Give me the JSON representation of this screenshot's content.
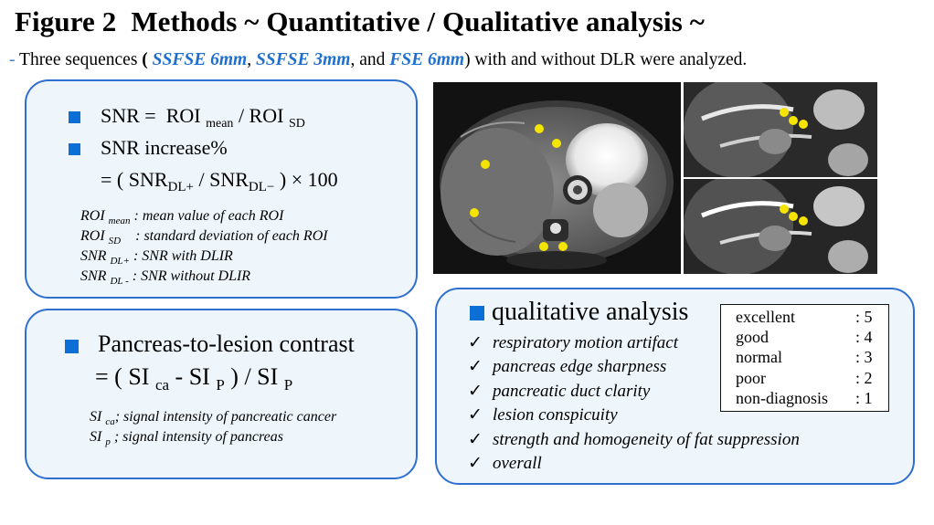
{
  "header": {
    "title_figure": "Figure 2",
    "title_text": "Methods ~ Quantitative / Qualitative analysis ~",
    "subtitle_dash": "-",
    "subtitle_prefix": "Three sequences",
    "open_paren": "(",
    "seq1": "SSFSE 6mm",
    "comma1": ",",
    "seq2": "SSFSE 3mm",
    "and_text": ", and",
    "seq3": "FSE 6mm",
    "subtitle_suffix": ") with and without DLR were analyzed."
  },
  "snr_box": {
    "formula1": {
      "lhs": "SNR =",
      "roi1": "ROI",
      "sub1": "mean",
      "slash": "/ ROI",
      "sub2": "SD"
    },
    "formula2_label": "SNR increase%",
    "formula3": {
      "prefix": "= ( SNR",
      "sub1": "DL+",
      "mid": "/ SNR",
      "sub2": "DL−",
      "suffix": ") × 100"
    },
    "defs": [
      {
        "term": "ROI",
        "sub": "mean",
        "desc": ": mean value of each ROI"
      },
      {
        "term": "ROI",
        "sub": "SD",
        "desc": ": standard deviation of each ROI"
      },
      {
        "term": "SNR",
        "sub": "DL+",
        "desc": ": SNR with DLIR"
      },
      {
        "term": "SNR",
        "sub": "DL -",
        "desc": ": SNR without DLIR"
      }
    ]
  },
  "contrast_box": {
    "label": "Pancreas-to-lesion contrast",
    "formula": {
      "prefix": "= ( SI",
      "sub1": "ca",
      "mid": "- SI",
      "sub2": "P",
      "mid2": ") / SI",
      "sub3": "P"
    },
    "defs": [
      {
        "term": "SI",
        "sub": "ca",
        "desc": "; signal intensity of pancreatic cancer"
      },
      {
        "term": "SI",
        "sub": "p",
        "desc": " ; signal intensity of pancreas"
      }
    ]
  },
  "qualitative_box": {
    "title": "qualitative analysis",
    "checkmark": "✓",
    "items": [
      "respiratory motion artifact",
      "pancreas edge sharpness",
      "pancreatic duct clarity",
      "lesion conspicuity",
      "strength and homogeneity of fat suppression",
      "overall"
    ],
    "scale": [
      {
        "label": "excellent",
        "value": ": 5"
      },
      {
        "label": "good",
        "value": ": 4"
      },
      {
        "label": "normal",
        "value": ": 3"
      },
      {
        "label": "poor",
        "value": ": 2"
      },
      {
        "label": "non-diagnosis",
        "value": ": 1"
      }
    ]
  },
  "colors": {
    "accent_blue": "#1f6fd1",
    "box_border": "#2f6fd0",
    "box_fill": "#eef6fc",
    "roi_marker": "#f5e300"
  }
}
